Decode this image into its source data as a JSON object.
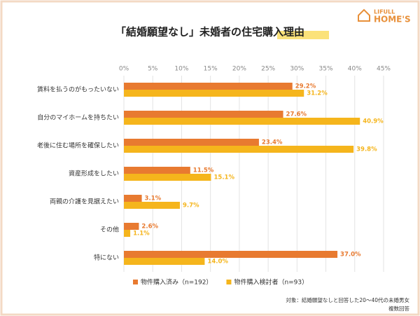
{
  "logo": [
    "LIFULL",
    "HOME'S"
  ],
  "chart_data": {
    "type": "hbar",
    "title": "「結婚願望なし」未婚者の住宅購入理由",
    "categories": [
      "賃料を払うのがもったいない",
      "自分のマイホームを持ちたい",
      "老後に住む場所を確保したい",
      "資産形成をしたい",
      "両親の介護を見据えたい",
      "その他",
      "特にない"
    ],
    "series": [
      {
        "name": "物件購入済み（n=192）",
        "color": "#e87a30",
        "values": [
          29.2,
          27.6,
          23.4,
          11.5,
          3.1,
          2.6,
          37.0
        ],
        "value_labels": [
          "29.2%",
          "27.6%",
          "23.4%",
          "11.5%",
          "3.1%",
          "2.6%",
          "37.0%"
        ]
      },
      {
        "name": "物件購入検討者（n=93）",
        "color": "#f5b51c",
        "values": [
          31.2,
          40.9,
          39.8,
          15.1,
          9.7,
          1.1,
          14.0
        ],
        "value_labels": [
          "31.2%",
          "40.9%",
          "39.8%",
          "15.1%",
          "9.7%",
          "1.1%",
          "14.0%"
        ]
      }
    ],
    "xlim": [
      0,
      45
    ],
    "xticks": [
      {
        "value": 0,
        "label": "0%"
      },
      {
        "value": 5,
        "label": "5%"
      },
      {
        "value": 10,
        "label": "10%"
      },
      {
        "value": 15,
        "label": "15%"
      },
      {
        "value": 20,
        "label": "20%"
      },
      {
        "value": 25,
        "label": "25%"
      },
      {
        "value": 30,
        "label": "30%"
      },
      {
        "value": 35,
        "label": "35%"
      },
      {
        "value": 40,
        "label": "40%"
      },
      {
        "value": 45,
        "label": "45%"
      }
    ],
    "grid": true,
    "notes": [
      "対象：結婚願望なしと回答した20〜40代の未婚男女",
      "複数回答"
    ]
  }
}
